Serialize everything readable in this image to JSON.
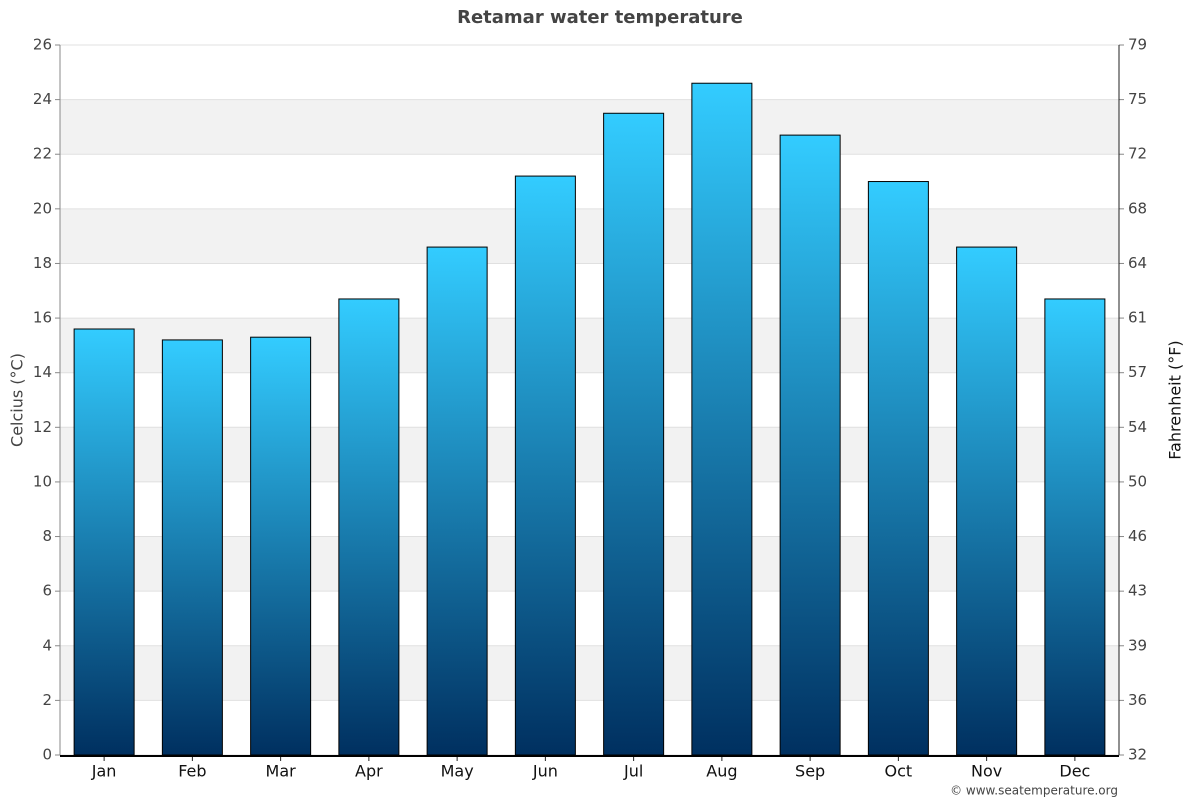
{
  "chart_data": {
    "type": "bar",
    "title": "Retamar water temperature",
    "y_label": "Celcius (°C)",
    "y2_label": "Fahrenheit (°F)",
    "credit": "© www.seatemperature.org",
    "categories": [
      "Jan",
      "Feb",
      "Mar",
      "Apr",
      "May",
      "Jun",
      "Jul",
      "Aug",
      "Sep",
      "Oct",
      "Nov",
      "Dec"
    ],
    "values": [
      15.6,
      15.2,
      15.3,
      16.7,
      18.6,
      21.2,
      23.5,
      24.6,
      22.7,
      21.0,
      18.6,
      16.7
    ],
    "color": "#33ccff",
    "color_bottom": "#003060",
    "ylim": [
      0,
      26
    ],
    "yticks": [
      0,
      2,
      4,
      6,
      8,
      10,
      12,
      14,
      16,
      18,
      20,
      22,
      24,
      26
    ],
    "y2lim": [
      32,
      78.8
    ],
    "y2ticks": [
      32,
      {
        "value": 35.6,
        "label": "36"
      },
      {
        "value": 39.2,
        "label": "39"
      },
      {
        "value": 42.8,
        "label": "43"
      },
      {
        "value": 46.4,
        "label": "46"
      },
      50,
      {
        "value": 53.6,
        "label": "54"
      },
      {
        "value": 57.2,
        "label": "57"
      },
      {
        "value": 60.8,
        "label": "61"
      },
      {
        "value": 64.4,
        "label": "64"
      },
      68,
      {
        "value": 71.6,
        "label": "72"
      },
      {
        "value": 75.2,
        "label": "75"
      },
      {
        "value": 78.8,
        "label": "79"
      }
    ],
    "grid": true,
    "band_color": "#f2f2f2"
  }
}
